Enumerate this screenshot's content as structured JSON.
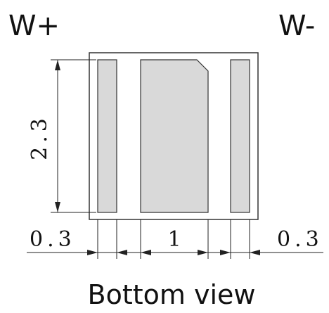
{
  "terminals": {
    "positive_label": "W+",
    "negative_label": "W-"
  },
  "dimensions": {
    "height": "2.3",
    "left_pad_width": "0.3",
    "center_pad_width": "1",
    "right_pad_width": "0.3"
  },
  "view_label": "Bottom view",
  "colors": {
    "pad_fill": "#d9d9d9",
    "outline": "#333333",
    "text": "#111111"
  }
}
